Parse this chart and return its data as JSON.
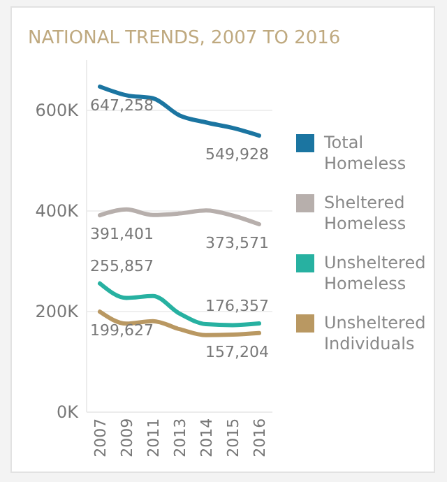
{
  "chart_data": {
    "type": "line",
    "title": "NATIONAL TRENDS, 2007 TO 2016",
    "categories": [
      "2007",
      "2009",
      "2011",
      "2013",
      "2014",
      "2015",
      "2016"
    ],
    "series": [
      {
        "name": "Total Homeless",
        "color": "#1b75a1",
        "values": [
          647258,
          630000,
          624000,
          590000,
          576000,
          565000,
          549928
        ],
        "value_labels": [
          "647,258",
          null,
          null,
          null,
          null,
          null,
          "549,928"
        ]
      },
      {
        "name": "Sheltered Homeless",
        "color": "#b7afac",
        "values": [
          391401,
          403000,
          392000,
          395000,
          401000,
          391000,
          373571
        ],
        "value_labels": [
          "391,401",
          null,
          null,
          null,
          null,
          null,
          "373,571"
        ]
      },
      {
        "name": "Unsheltered Homeless",
        "color": "#27b1a1",
        "values": [
          255857,
          227000,
          231000,
          196000,
          175000,
          173000,
          176357
        ],
        "value_labels": [
          "255,857",
          null,
          null,
          null,
          null,
          null,
          "176,357"
        ]
      },
      {
        "name": "Unsheltered Individuals",
        "color": "#b99862",
        "values": [
          199627,
          176000,
          181000,
          165000,
          153000,
          154000,
          157204
        ],
        "value_labels": [
          "199,627",
          null,
          null,
          null,
          null,
          null,
          "157,204"
        ]
      }
    ],
    "ylim": [
      0,
      700000
    ],
    "yticks": [
      {
        "value": 0,
        "label": "0K"
      },
      {
        "value": 200000,
        "label": "200K"
      },
      {
        "value": 400000,
        "label": "400K"
      },
      {
        "value": 600000,
        "label": "600K"
      }
    ],
    "grid": "y",
    "legend": "right",
    "marker": "none",
    "line_style": "solid"
  }
}
